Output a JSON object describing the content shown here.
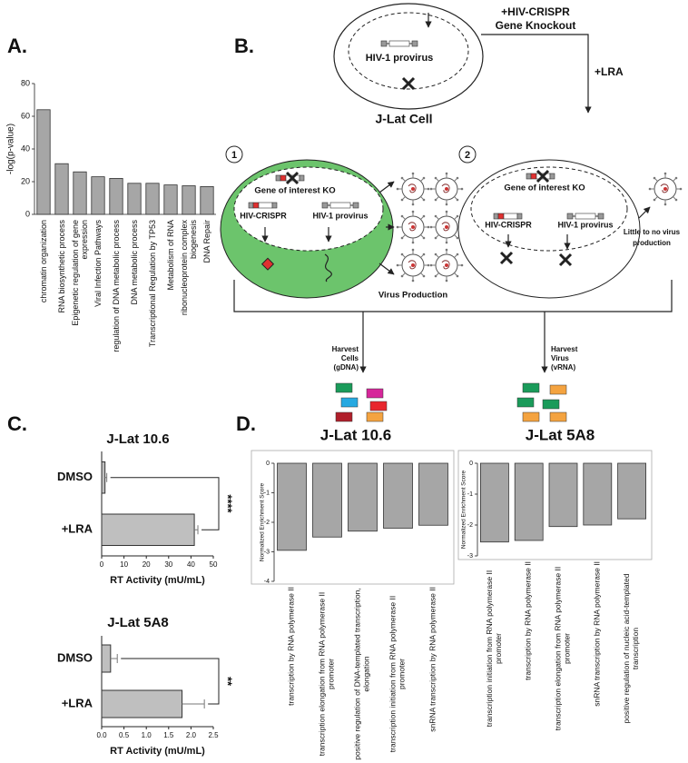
{
  "panel_labels": [
    "A.",
    "B.",
    "C.",
    "D."
  ],
  "chart_data": [
    {
      "type": "bar",
      "ylabel": "-log(p-value)",
      "categories": [
        "chromatin organization",
        "RNA biosynthetic process",
        "Epigenetic regulation of gene expression",
        "Viral Infection Pathways",
        "regulation of DNA metabolic process",
        "DNA metabolic process",
        "Transcriptional Regulation by TP53",
        "Metabolism of RNA",
        "ribonucleoprotein complex biogenesis",
        "DNA Repair"
      ],
      "values": [
        64,
        31,
        26,
        23,
        22,
        19,
        19,
        18,
        17.5,
        17
      ],
      "color": "#a6a6a6",
      "ylim": [
        0,
        80
      ],
      "yticks": [
        0,
        20,
        40,
        60,
        80
      ]
    },
    {
      "type": "hbar",
      "title": "J-Lat 10.6",
      "xlabel": "RT Activity (mU/mL)",
      "categories": [
        "DMSO",
        "+LRA"
      ],
      "values": [
        1.5,
        41.5
      ],
      "errors": [
        0.8,
        1.6
      ],
      "color": "#bfbfbf",
      "xlim": [
        0,
        50
      ],
      "xticks": [
        0,
        10,
        20,
        30,
        40,
        50
      ],
      "significance": "****"
    },
    {
      "type": "hbar",
      "title": "J-Lat 5A8",
      "xlabel": "RT Activity (mU/mL)",
      "categories": [
        "DMSO",
        "+LRA"
      ],
      "values": [
        0.2,
        1.8
      ],
      "errors": [
        0.15,
        0.5
      ],
      "color": "#bfbfbf",
      "xlim": [
        0,
        2.5
      ],
      "xticks": [
        {
          "value": 0,
          "label": "0.0"
        },
        0.5,
        {
          "value": 1,
          "label": "1.0"
        },
        1.5,
        {
          "value": 2,
          "label": "2.0"
        },
        2.5
      ],
      "significance": "**"
    },
    {
      "type": "bar",
      "title": "J-Lat 10.6",
      "ylabel": "Normalized Enrichment Score",
      "categories": [
        "transcription by RNA polymerase II",
        "transcription elongation from RNA polymerase II promoter",
        "positive regulation of DNA-templated transcription, elongation",
        "transcription initiation from RNA polymerase II promoter",
        "snRNA transcription by RNA polymerase II"
      ],
      "values": [
        -2.95,
        -2.5,
        -2.3,
        -2.2,
        -2.1
      ],
      "color": "#a6a6a6",
      "ylim": [
        -4,
        0
      ],
      "yticks": [
        0,
        -1,
        -2,
        -3,
        -4
      ]
    },
    {
      "type": "bar",
      "title": "J-Lat 5A8",
      "ylabel": "Normalized Enrichment Score",
      "categories": [
        "transcription initiation from RNA polymerase II promoter",
        "transcription by RNA polymerase II",
        "transcription elongation from RNA polymerase II promoter",
        "snRNA transcription by RNA polymerase II",
        "positive regulation of nucleic acid-templated transcription"
      ],
      "values": [
        -2.55,
        -2.5,
        -2.05,
        -2.0,
        -1.8
      ],
      "color": "#a6a6a6",
      "ylim": [
        -3,
        0
      ],
      "yticks": [
        0,
        -1,
        -2,
        -3
      ]
    }
  ],
  "diagram": {
    "knockout": [
      "+HIV-CRISPR",
      "Gene Knockout"
    ],
    "lra": "+LRA",
    "cell_provirus": "HIV-1 provirus",
    "cell_name": "J-Lat Cell",
    "steps": [
      "1",
      "2"
    ],
    "cells": [
      {
        "ko": "Gene of interest KO",
        "crispr": "HIV-CRISPR",
        "provirus": "HIV-1 provirus",
        "outcome": [
          "Virus Production"
        ]
      },
      {
        "ko": "Gene of interest KO",
        "crispr": "HIV-CRISPR",
        "provirus": "HIV-1 provirus",
        "outcome": [
          "Little to no virus",
          "production"
        ]
      }
    ],
    "harvest": [
      [
        "Harvest",
        "Cells",
        "(gDNA)"
      ],
      [
        "Harvest",
        "Virus",
        "(vRNA)"
      ]
    ]
  }
}
